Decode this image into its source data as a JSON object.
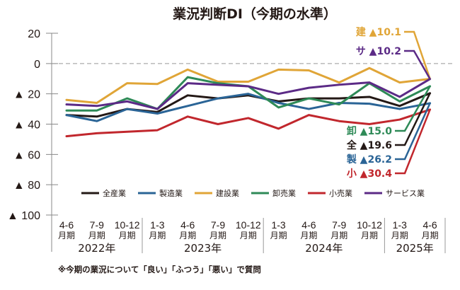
{
  "chart_data": {
    "type": "line",
    "title": "業況判断DI（今期の水準）",
    "xlabel": "",
    "ylabel": "",
    "ylim": [
      -100,
      20
    ],
    "yticks": [
      20,
      0,
      -20,
      -40,
      -60,
      -80,
      -100
    ],
    "ytick_labels": [
      "20",
      "0",
      "▲ 20",
      "▲ 40",
      "▲ 60",
      "▲ 80",
      "▲ 100"
    ],
    "reference_line": {
      "y": 0,
      "style": "dashed"
    },
    "grid": false,
    "legend_position": "bottom-inside",
    "x": [
      "2022 4-6",
      "2022 7-9",
      "2022 10-12",
      "2023 1-3",
      "2023 4-6",
      "2023 7-9",
      "2023 10-12",
      "2024 1-3",
      "2024 4-6",
      "2024 7-9",
      "2024 10-12",
      "2025 1-3",
      "2025 4-6"
    ],
    "quarter_labels": [
      "4-6",
      "7-9",
      "10-12",
      "1-3",
      "4-6",
      "7-9",
      "10-12",
      "1-3",
      "4-6",
      "7-9",
      "10-12",
      "1-3",
      "4-6"
    ],
    "month_suffix": "月期",
    "year_groups": [
      {
        "label": "2022年",
        "start": 0,
        "end": 2
      },
      {
        "label": "2023年",
        "start": 3,
        "end": 6
      },
      {
        "label": "2024年",
        "start": 7,
        "end": 10
      },
      {
        "label": "2025年",
        "start": 11,
        "end": 12
      }
    ],
    "series": [
      {
        "name": "全産業",
        "short": "全",
        "color": "#231815",
        "values": [
          -34,
          -35,
          -30,
          -32,
          -21,
          -23,
          -21,
          -25,
          -23,
          -23,
          -22,
          -28,
          -19.6
        ],
        "end_label": "▲19.6"
      },
      {
        "name": "製造業",
        "short": "製",
        "color": "#2a6496",
        "values": [
          -34,
          -38,
          -30,
          -33,
          -28,
          -23,
          -20,
          -26,
          -30,
          -26,
          -26.5,
          -30,
          -26.2
        ],
        "end_label": "▲26.2"
      },
      {
        "name": "建設業",
        "short": "建",
        "color": "#e0a537",
        "values": [
          -24,
          -26,
          -13,
          -13.5,
          -4,
          -12,
          -12,
          -4,
          -4.5,
          -12.5,
          -3,
          -12.5,
          -10.1
        ],
        "end_label": "▲10.1"
      },
      {
        "name": "卸売業",
        "short": "卸",
        "color": "#2e8a57",
        "values": [
          -31,
          -31,
          -23,
          -30,
          -9,
          -13,
          -15,
          -29,
          -23,
          -27,
          -13,
          -25,
          -15.0
        ],
        "end_label": "▲15.0"
      },
      {
        "name": "小売業",
        "short": "小",
        "color": "#c1272d",
        "values": [
          -48,
          -46,
          -45,
          -44,
          -35,
          -40,
          -36,
          -43,
          -34,
          -38,
          -40,
          -37,
          -30.4
        ],
        "end_label": "▲30.4"
      },
      {
        "name": "サービス業",
        "short": "サ",
        "color": "#5b2a86",
        "values": [
          -27,
          -28,
          -25,
          -30,
          -13,
          -14,
          -15,
          -20,
          -16,
          -14,
          -12.5,
          -22,
          -10.2
        ],
        "end_label": "▲10.2"
      }
    ],
    "end_label_order": [
      "建設業",
      "サービス業",
      "卸売業",
      "全産業",
      "製造業",
      "小売業"
    ],
    "end_label_colors": {
      "建設業": "#e0a537",
      "サービス業": "#5b2a86",
      "卸売業": "#2e8a57",
      "全産業": "#231815",
      "製造業": "#2a6496",
      "小売業": "#c1272d"
    }
  },
  "footnote": "※今期の業況について「良い」「ふつう」「悪い」で質問"
}
